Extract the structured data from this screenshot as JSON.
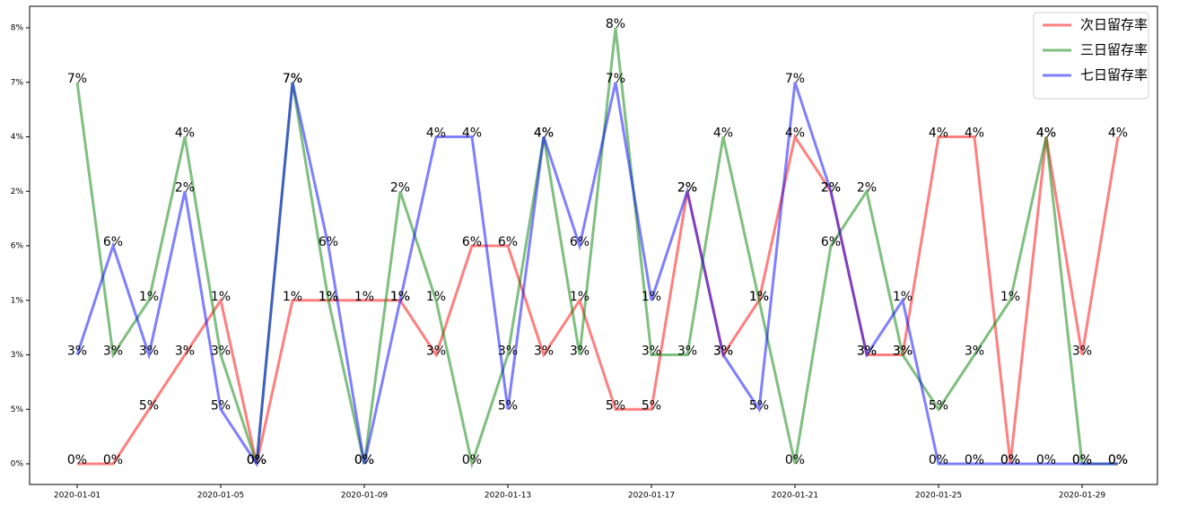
{
  "chart_data": {
    "type": "line",
    "x": [
      "2020-01-01",
      null,
      null,
      null,
      "2020-01-05",
      null,
      null,
      null,
      "2020-01-09",
      null,
      null,
      null,
      "2020-01-13",
      null,
      null,
      null,
      "2020-01-17",
      null,
      null,
      null,
      "2020-01-21",
      null,
      null,
      null,
      "2020-01-25",
      null,
      null,
      null,
      "2020-01-29",
      null
    ],
    "ycategories": [
      "0%",
      "5%",
      "3%",
      "1%",
      "6%",
      "2%",
      "4%",
      "7%",
      "8%"
    ],
    "legend": "upper right",
    "series": [
      {
        "name": "次日留存率",
        "color": "#ff0000",
        "values": [
          "0%",
          "0%",
          "5%",
          "3%",
          "1%",
          "0%",
          "1%",
          "1%",
          "1%",
          "1%",
          "3%",
          "6%",
          "6%",
          "3%",
          "1%",
          "5%",
          "5%",
          "2%",
          "3%",
          "1%",
          "4%",
          "2%",
          "3%",
          "3%",
          "4%",
          "4%",
          "0%",
          "4%",
          "3%",
          "4%"
        ]
      },
      {
        "name": "三日留存率",
        "color": "#008000",
        "values": [
          "7%",
          "3%",
          "1%",
          "4%",
          "3%",
          "0%",
          "7%",
          "1%",
          "0%",
          "2%",
          "1%",
          "0%",
          "3%",
          "4%",
          "3%",
          "8%",
          "3%",
          "3%",
          "4%",
          "1%",
          "0%",
          "6%",
          "2%",
          "3%",
          "5%",
          "3%",
          "1%",
          "4%",
          "0%",
          "0%"
        ]
      },
      {
        "name": "七日留存率",
        "color": "#0000ff",
        "values": [
          "3%",
          "6%",
          "3%",
          "2%",
          "5%",
          "0%",
          "7%",
          "6%",
          "0%",
          "1%",
          "4%",
          "4%",
          "5%",
          "4%",
          "6%",
          "7%",
          "1%",
          "2%",
          "3%",
          "5%",
          "7%",
          "2%",
          "3%",
          "1%",
          "0%",
          "0%",
          "0%",
          "0%",
          "0%",
          "0%"
        ]
      }
    ]
  }
}
